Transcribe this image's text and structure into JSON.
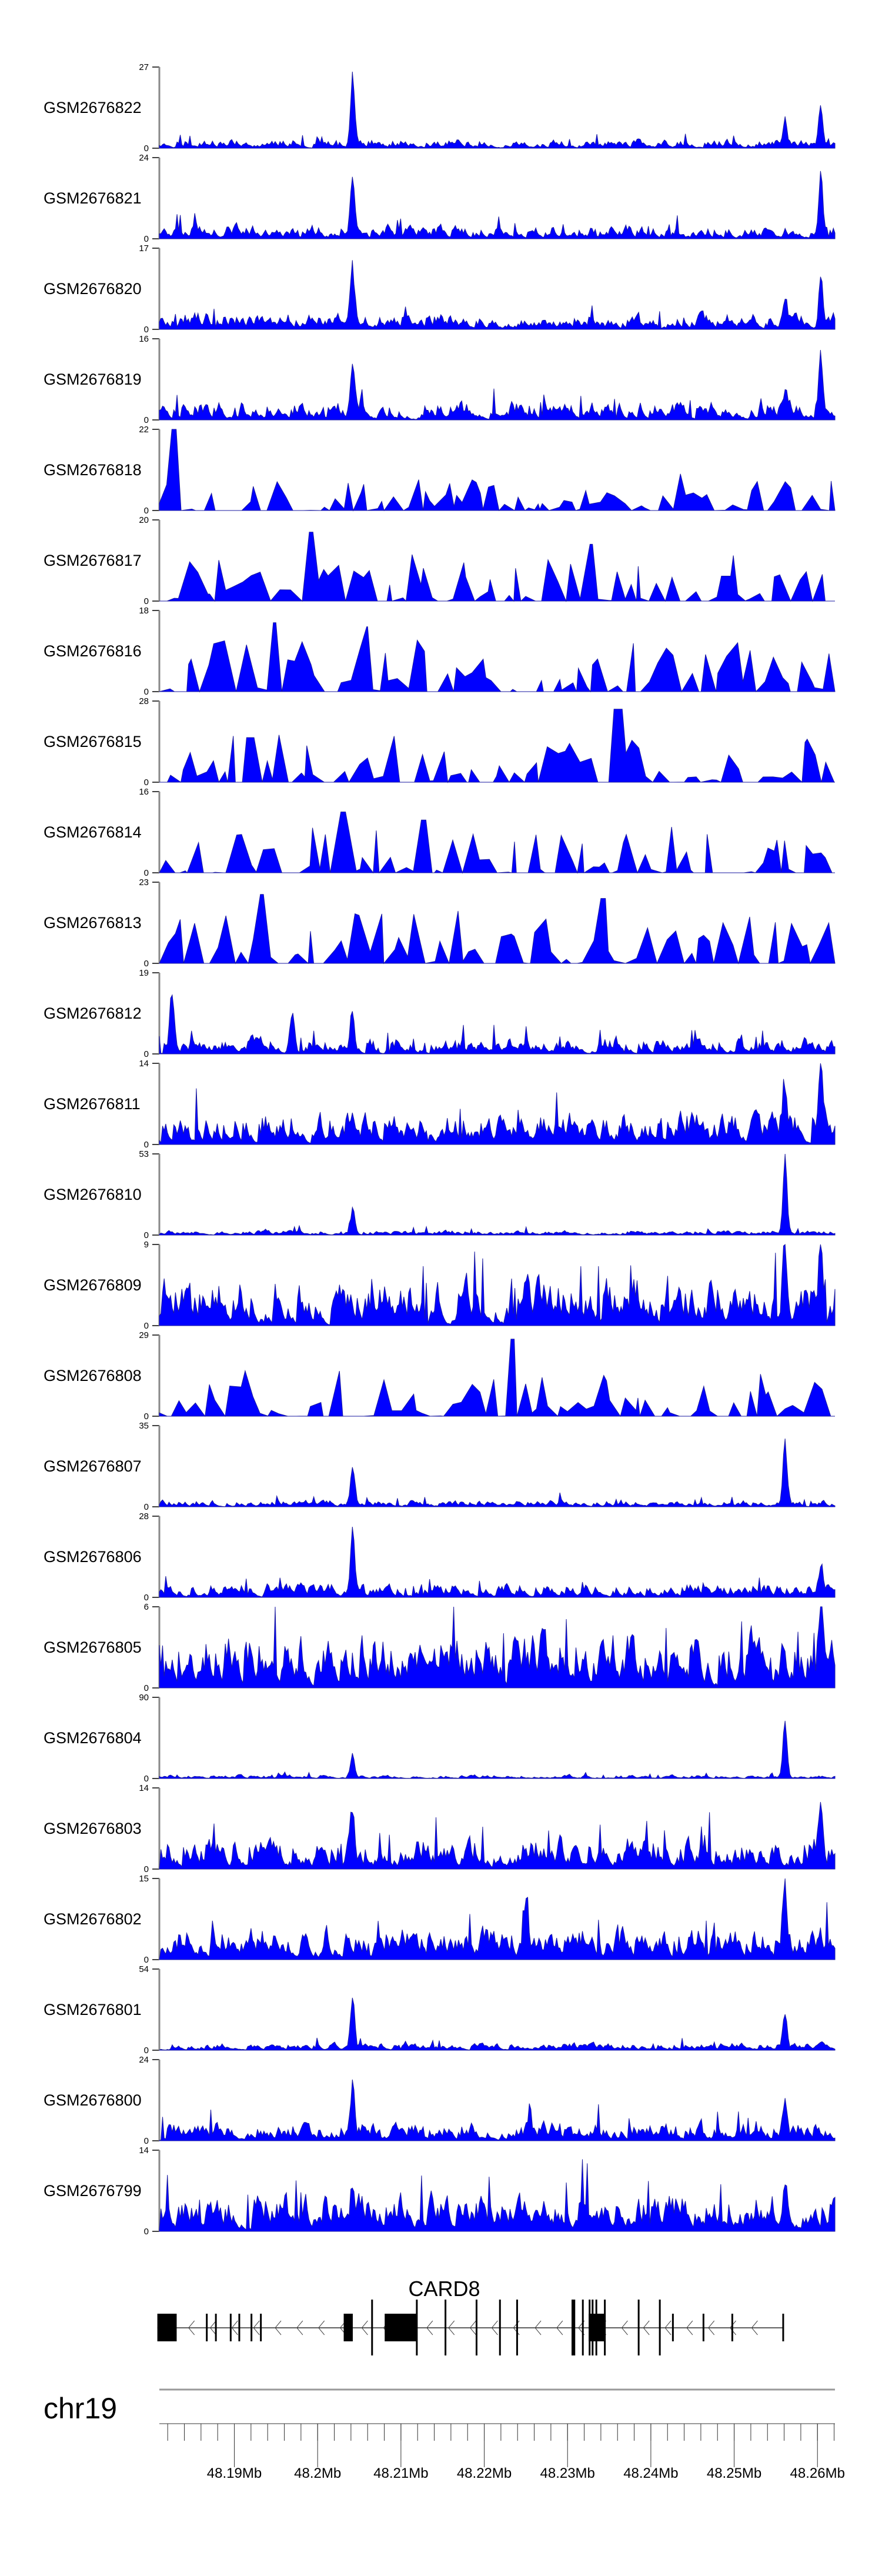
{
  "chart_data": {
    "type": "area",
    "title": "",
    "xlabel": "chr19",
    "xlim_mb": [
      48.181,
      48.2621
    ],
    "fill_color": "#0000ff",
    "tracks": [
      {
        "name": "GSM2676822",
        "ymax": 27,
        "style": "dense",
        "base": 0.1,
        "peaks": [
          [
            48.2042,
            1.0
          ],
          [
            48.2561,
            0.35
          ],
          [
            48.2604,
            0.55
          ]
        ]
      },
      {
        "name": "GSM2676821",
        "ymax": 24,
        "style": "dense",
        "base": 0.15,
        "peaks": [
          [
            48.2042,
            0.85
          ],
          [
            48.2604,
            0.8
          ]
        ]
      },
      {
        "name": "GSM2676820",
        "ymax": 17,
        "style": "dense",
        "base": 0.18,
        "peaks": [
          [
            48.2042,
            0.75
          ],
          [
            48.2561,
            0.35
          ],
          [
            48.2604,
            0.6
          ]
        ]
      },
      {
        "name": "GSM2676819",
        "ymax": 16,
        "style": "dense",
        "base": 0.2,
        "peaks": [
          [
            48.2042,
            0.7
          ],
          [
            48.2561,
            0.3
          ],
          [
            48.2604,
            0.8
          ]
        ]
      },
      {
        "name": "GSM2676818",
        "ymax": 22,
        "style": "sparse",
        "base": 0.35,
        "peaks": [
          [
            48.1825,
            1.0
          ]
        ]
      },
      {
        "name": "GSM2676817",
        "ymax": 20,
        "style": "sparse",
        "base": 0.45,
        "peaks": [
          [
            48.199,
            0.85
          ],
          [
            48.233,
            0.7
          ]
        ]
      },
      {
        "name": "GSM2676816",
        "ymax": 18,
        "style": "sparse",
        "base": 0.5,
        "peaks": [
          [
            48.195,
            0.85
          ],
          [
            48.206,
            0.8
          ]
        ]
      },
      {
        "name": "GSM2676815",
        "ymax": 28,
        "style": "sparse",
        "base": 0.45,
        "peaks": [
          [
            48.192,
            0.55
          ],
          [
            48.236,
            0.9
          ]
        ]
      },
      {
        "name": "GSM2676814",
        "ymax": 16,
        "style": "sparse",
        "base": 0.45,
        "peaks": [
          [
            48.203,
            0.75
          ],
          [
            48.213,
            0.65
          ]
        ]
      },
      {
        "name": "GSM2676813",
        "ymax": 23,
        "style": "sparse",
        "base": 0.5,
        "peaks": [
          [
            48.1935,
            0.85
          ],
          [
            48.234,
            0.8
          ]
        ]
      },
      {
        "name": "GSM2676812",
        "ymax": 19,
        "style": "dense",
        "base": 0.18,
        "peaks": [
          [
            48.1825,
            0.75
          ],
          [
            48.197,
            0.5
          ],
          [
            48.2042,
            0.45
          ]
        ]
      },
      {
        "name": "GSM2676811",
        "ymax": 14,
        "style": "dense",
        "base": 0.35,
        "peaks": [
          [
            48.2604,
            1.0
          ],
          [
            48.2561,
            0.6
          ]
        ]
      },
      {
        "name": "GSM2676810",
        "ymax": 53,
        "style": "dense",
        "base": 0.05,
        "peaks": [
          [
            48.2042,
            0.35
          ],
          [
            48.2561,
            1.0
          ]
        ]
      },
      {
        "name": "GSM2676809",
        "ymax": 9,
        "style": "dense",
        "base": 0.5,
        "peaks": [
          [
            48.2561,
            0.9
          ],
          [
            48.2604,
            0.95
          ]
        ]
      },
      {
        "name": "GSM2676808",
        "ymax": 29,
        "style": "sparse",
        "base": 0.45,
        "peaks": [
          [
            48.2232,
            0.95
          ]
        ]
      },
      {
        "name": "GSM2676807",
        "ymax": 35,
        "style": "dense",
        "base": 0.07,
        "peaks": [
          [
            48.2042,
            0.5
          ],
          [
            48.2561,
            0.85
          ]
        ]
      },
      {
        "name": "GSM2676806",
        "ymax": 28,
        "style": "dense",
        "base": 0.15,
        "peaks": [
          [
            48.2042,
            0.85
          ],
          [
            48.2604,
            0.35
          ]
        ]
      },
      {
        "name": "GSM2676805",
        "ymax": 6,
        "style": "dense",
        "base": 0.6,
        "peaks": [
          [
            48.2604,
            0.95
          ]
        ]
      },
      {
        "name": "GSM2676804",
        "ymax": 90,
        "style": "dense",
        "base": 0.04,
        "peaks": [
          [
            48.2042,
            0.3
          ],
          [
            48.2561,
            0.8
          ]
        ]
      },
      {
        "name": "GSM2676803",
        "ymax": 14,
        "style": "dense",
        "base": 0.35,
        "peaks": [
          [
            48.2042,
            0.55
          ],
          [
            48.2604,
            0.75
          ]
        ]
      },
      {
        "name": "GSM2676802",
        "ymax": 15,
        "style": "dense",
        "base": 0.35,
        "peaks": [
          [
            48.2561,
            0.75
          ],
          [
            48.225,
            0.6
          ]
        ]
      },
      {
        "name": "GSM2676801",
        "ymax": 54,
        "style": "dense",
        "base": 0.08,
        "peaks": [
          [
            48.2042,
            0.7
          ],
          [
            48.2561,
            0.45
          ]
        ]
      },
      {
        "name": "GSM2676800",
        "ymax": 24,
        "style": "dense",
        "base": 0.2,
        "peaks": [
          [
            48.2042,
            0.65
          ],
          [
            48.2561,
            0.5
          ]
        ]
      },
      {
        "name": "GSM2676799",
        "ymax": 14,
        "style": "dense",
        "base": 0.4,
        "peaks": [
          [
            48.2561,
            0.55
          ],
          [
            48.2042,
            0.45
          ]
        ]
      }
    ],
    "gene": {
      "name": "CARD8",
      "strand": "-",
      "start_mb": 48.18076,
      "end_mb": 48.25583,
      "exons": [
        [
          48.18076,
          48.18308,
          "mid"
        ],
        [
          48.18659,
          48.18669,
          "mid"
        ],
        [
          48.18768,
          48.18776,
          "mid"
        ],
        [
          48.18946,
          48.18954,
          "mid"
        ],
        [
          48.19049,
          48.19057,
          "mid"
        ],
        [
          48.19195,
          48.19203,
          "mid"
        ],
        [
          48.19308,
          48.19316,
          "mid"
        ],
        [
          48.20313,
          48.20422,
          "mid"
        ],
        [
          48.20643,
          48.20651,
          "tall"
        ],
        [
          48.20805,
          48.21184,
          "mid"
        ],
        [
          48.2118,
          48.21192,
          "tall"
        ],
        [
          48.21524,
          48.21534,
          "tall"
        ],
        [
          48.21897,
          48.21905,
          "tall"
        ],
        [
          48.22178,
          48.22186,
          "tall"
        ],
        [
          48.22384,
          48.2239,
          "tall"
        ],
        [
          48.23048,
          48.23092,
          "tall"
        ],
        [
          48.23173,
          48.23181,
          "tall"
        ],
        [
          48.23254,
          48.23443,
          "mid"
        ],
        [
          48.23254,
          48.23262,
          "tall"
        ],
        [
          48.2329,
          48.23296,
          "tall"
        ],
        [
          48.23335,
          48.23341,
          "tall"
        ],
        [
          48.23437,
          48.23447,
          "tall"
        ],
        [
          48.23843,
          48.23851,
          "tall"
        ],
        [
          48.24097,
          48.24103,
          "tall"
        ],
        [
          48.24254,
          48.24262,
          "mid"
        ],
        [
          48.24621,
          48.24631,
          "mid"
        ],
        [
          48.24967,
          48.24977,
          "mid"
        ],
        [
          48.25578,
          48.25588,
          "mid"
        ]
      ]
    },
    "axis": {
      "chromosome": "chr19",
      "minor_tick_mb": 0.002,
      "tick_labels": [
        {
          "mb": 48.19,
          "label": "48.19Mb"
        },
        {
          "mb": 48.2,
          "label": "48.2Mb"
        },
        {
          "mb": 48.21,
          "label": "48.21Mb"
        },
        {
          "mb": 48.22,
          "label": "48.22Mb"
        },
        {
          "mb": 48.23,
          "label": "48.23Mb"
        },
        {
          "mb": 48.24,
          "label": "48.24Mb"
        },
        {
          "mb": 48.25,
          "label": "48.25Mb"
        },
        {
          "mb": 48.26,
          "label": "48.26Mb"
        }
      ]
    }
  }
}
